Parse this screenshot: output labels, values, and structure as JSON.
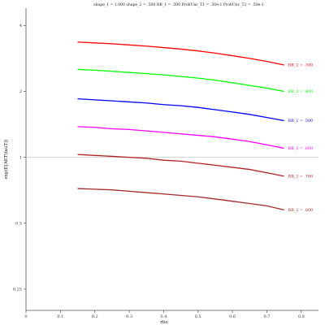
{
  "chart_data": {
    "type": "line",
    "title": "shape_1 = 1.000  shape_2 = .500  RR_1 = .500  ProbUnc_T1 = .50e-1  ProbUnc_T2 = .50e-1",
    "xlabel": "rho",
    "ylabel": "exp(E[AET\\tauT])",
    "xlim": [
      0,
      0.85
    ],
    "ylim": [
      0.2,
      4.8
    ],
    "yscale": "log",
    "x_ticks": [
      "0",
      "0.1",
      "0.2",
      "0.3",
      "0.4",
      "0.5",
      "0.6",
      "0.7",
      "0.8"
    ],
    "y_ticks": [
      "0.25",
      "0.5",
      "1",
      "2",
      "4"
    ],
    "reference_line_y": 1,
    "grid": false,
    "legend": "inline labels at right end of each line",
    "x": [
      0.15,
      0.2,
      0.25,
      0.3,
      0.35,
      0.4,
      0.45,
      0.5,
      0.55,
      0.6,
      0.65,
      0.7,
      0.75
    ],
    "series": [
      {
        "name": "RR_2 = .300",
        "color": "#ff0000",
        "values": [
          3.36,
          3.33,
          3.3,
          3.26,
          3.22,
          3.17,
          3.12,
          3.06,
          2.99,
          2.91,
          2.83,
          2.74,
          2.64
        ]
      },
      {
        "name": "RR_2 = .400",
        "color": "#00ff00",
        "values": [
          2.52,
          2.5,
          2.47,
          2.44,
          2.41,
          2.38,
          2.34,
          2.3,
          2.25,
          2.19,
          2.13,
          2.07,
          2.0
        ]
      },
      {
        "name": "RR_2 = .500",
        "color": "#0000ff",
        "values": [
          1.85,
          1.83,
          1.81,
          1.79,
          1.77,
          1.74,
          1.72,
          1.69,
          1.65,
          1.61,
          1.57,
          1.52,
          1.47
        ]
      },
      {
        "name": "RR_2 = .600",
        "color": "#ff00ff",
        "values": [
          1.38,
          1.37,
          1.35,
          1.34,
          1.32,
          1.3,
          1.28,
          1.26,
          1.24,
          1.21,
          1.18,
          1.14,
          1.1
        ]
      },
      {
        "name": "RR_2 = .700",
        "color": "#b22222",
        "values": [
          1.03,
          1.02,
          1.01,
          1.0,
          0.99,
          0.97,
          0.96,
          0.94,
          0.92,
          0.9,
          0.88,
          0.85,
          0.82
        ]
      },
      {
        "name": "RR_2 = .800",
        "color": "#a52a2a",
        "values": [
          0.72,
          0.715,
          0.71,
          0.7,
          0.69,
          0.68,
          0.67,
          0.66,
          0.645,
          0.63,
          0.615,
          0.6,
          0.575
        ]
      }
    ]
  }
}
